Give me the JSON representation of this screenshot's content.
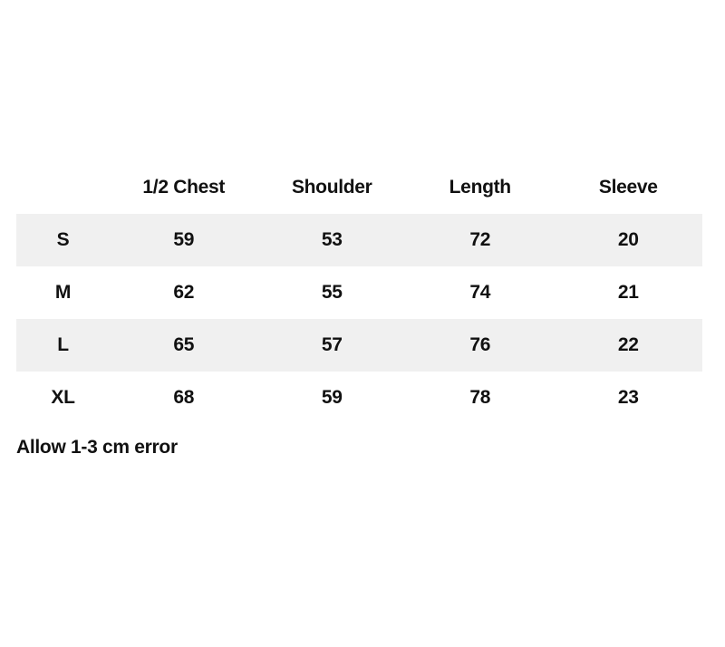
{
  "chart_data": {
    "type": "table",
    "columns": [
      "",
      "1/2 Chest",
      "Shoulder",
      "Length",
      "Sleeve"
    ],
    "rows": [
      [
        "S",
        "59",
        "53",
        "72",
        "20"
      ],
      [
        "M",
        "62",
        "55",
        "74",
        "21"
      ],
      [
        "L",
        "65",
        "57",
        "76",
        "22"
      ],
      [
        "XL",
        "68",
        "59",
        "78",
        "23"
      ]
    ],
    "units": "cm",
    "layout": {
      "striped_rows": [
        "S",
        "L"
      ],
      "header_background": "none",
      "grid": "off"
    }
  },
  "note": "Allow 1-3 cm error",
  "colors": {
    "background": "#ffffff",
    "stripe_row": "#f0f0f0",
    "text": "#111111"
  }
}
